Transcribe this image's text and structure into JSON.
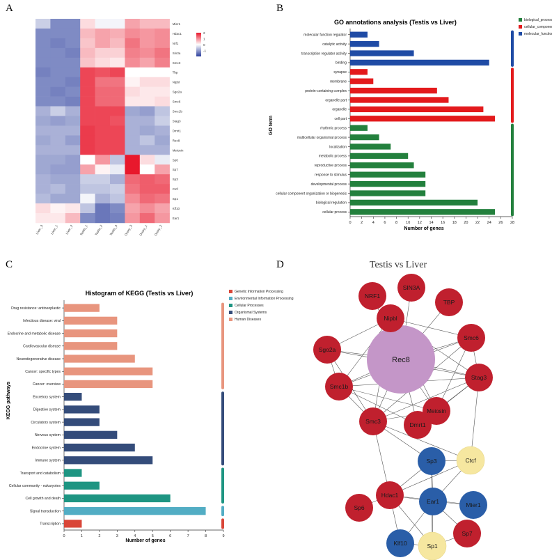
{
  "panel_labels": [
    "A",
    "B",
    "C",
    "D"
  ],
  "chart_data": [
    {
      "type": "heatmap",
      "panel": "A",
      "columns": [
        "Liver_3",
        "Liver_1",
        "Liver_2",
        "Testis_1",
        "Testis_2",
        "Testis_3",
        "Ovary_3",
        "Ovary_1",
        "Ovary_2"
      ],
      "rows": [
        "Mier1",
        "Hdac1",
        "Nrf1",
        "Sin3a",
        "Smc3",
        "Tbp",
        "Nipbl",
        "Sgo2a",
        "Smc6",
        "Smc1b",
        "Stag3",
        "Dmrt1",
        "Rec8",
        "Meiosin",
        "Sp6",
        "Sp7",
        "Sp3",
        "Ctcf",
        "Sp1",
        "Klf10",
        "Ear1"
      ],
      "values": [
        [
          -0.5,
          -1.2,
          -1.2,
          0.3,
          -0.1,
          -0.1,
          0.8,
          0.6,
          0.6
        ],
        [
          -1.2,
          -1.2,
          -1.2,
          0.6,
          0.8,
          0.7,
          1.0,
          0.9,
          1.0
        ],
        [
          -1.2,
          -1.3,
          -1.2,
          0.5,
          0.8,
          0.6,
          1.2,
          0.9,
          1.0
        ],
        [
          -1.2,
          -1.2,
          -1.3,
          0.6,
          0.4,
          0.4,
          1.1,
          1.0,
          1.2
        ],
        [
          -1.2,
          -1.2,
          -1.2,
          0.5,
          0.3,
          0.2,
          1.0,
          0.8,
          1.1
        ],
        [
          -1.3,
          -1.2,
          -1.2,
          1.6,
          1.5,
          1.6,
          0.0,
          0.0,
          0.0
        ],
        [
          -1.2,
          -1.2,
          -1.3,
          1.6,
          1.2,
          1.2,
          0.1,
          0.3,
          0.3
        ],
        [
          -1.2,
          -1.3,
          -1.2,
          1.6,
          1.3,
          1.3,
          0.3,
          0.2,
          0.2
        ],
        [
          -1.2,
          -1.2,
          -1.3,
          1.6,
          1.3,
          1.3,
          0.2,
          0.2,
          0.3
        ],
        [
          -0.8,
          -0.5,
          -0.8,
          1.6,
          1.6,
          1.6,
          -0.9,
          -1.0,
          -0.6
        ],
        [
          -0.9,
          -1.0,
          -0.9,
          1.6,
          1.6,
          1.5,
          -0.8,
          -0.8,
          -0.5
        ],
        [
          -0.8,
          -0.8,
          -0.8,
          1.7,
          1.6,
          1.6,
          -0.8,
          -0.9,
          -0.8
        ],
        [
          -0.9,
          -0.8,
          -1.0,
          1.7,
          1.6,
          1.6,
          -0.8,
          -0.6,
          -0.9
        ],
        [
          -0.8,
          -0.8,
          -0.8,
          1.7,
          1.6,
          1.6,
          -0.8,
          -0.8,
          -0.8
        ],
        [
          -0.9,
          -0.9,
          -1.0,
          0.0,
          0.9,
          -0.6,
          2.0,
          0.3,
          -0.2
        ],
        [
          -0.9,
          -1.0,
          -1.0,
          0.8,
          0.1,
          -0.2,
          2.0,
          0.0,
          0.8
        ],
        [
          -0.8,
          -0.9,
          -0.9,
          -0.5,
          -0.5,
          -0.8,
          1.3,
          1.4,
          1.3
        ],
        [
          -0.8,
          -0.7,
          -0.9,
          -0.6,
          -0.6,
          -0.5,
          1.2,
          1.4,
          1.4
        ],
        [
          -0.7,
          -0.9,
          -0.9,
          -0.1,
          -0.8,
          -0.6,
          1.0,
          1.3,
          1.2
        ],
        [
          0.3,
          0.1,
          0.2,
          -0.6,
          -1.4,
          -1.2,
          0.8,
          1.0,
          0.8
        ],
        [
          0.2,
          0.2,
          0.6,
          -1.2,
          -1.4,
          -1.3,
          0.9,
          1.3,
          0.9
        ]
      ],
      "scale_ticks": [
        "2",
        "1",
        "0",
        "-1"
      ],
      "scale_range": [
        -2,
        2
      ],
      "colors": {
        "low": "#2a3d9c",
        "mid": "#ffffff",
        "high": "#e8182c"
      }
    },
    {
      "type": "bar",
      "panel": "B",
      "orientation": "horizontal",
      "title": "GO annotations analysis (Testis vs Liver)",
      "xlabel": "Number of genes",
      "ylabel": "GO term",
      "xlim": [
        0,
        28
      ],
      "xticks": [
        0,
        2,
        4,
        6,
        8,
        10,
        12,
        14,
        16,
        18,
        20,
        22,
        24,
        26,
        28
      ],
      "categories": [
        "molecular function regulator",
        "catalytic activity",
        "transcription regulator activity",
        "binding",
        "synapse",
        "membrane",
        "protein-containing complex",
        "organelle part",
        "organelle",
        "cell part",
        "rhythmic process",
        "multicellular organismal process",
        "localization",
        "metabolic process",
        "reproductive process",
        "response to stimulus",
        "developmental process",
        "cellular component organization or biogenesis",
        "biological regulation",
        "cellular process"
      ],
      "values": [
        3,
        5,
        11,
        24,
        3,
        4,
        15,
        17,
        23,
        25,
        3,
        5,
        7,
        10,
        11,
        13,
        13,
        13,
        22,
        25
      ],
      "groups": [
        2,
        2,
        2,
        2,
        1,
        1,
        1,
        1,
        1,
        1,
        0,
        0,
        0,
        0,
        0,
        0,
        0,
        0,
        0,
        0
      ],
      "legend": [
        "biological_process",
        "cellular_component",
        "molecular_function"
      ],
      "colors": [
        "#23803d",
        "#e31a1c",
        "#1f4ba5"
      ]
    },
    {
      "type": "bar",
      "panel": "C",
      "orientation": "horizontal",
      "title": "Histogram of KEGG (Testis vs Liver)",
      "xlabel": "Number of genes",
      "ylabel": "KEGG pathways",
      "xlim": [
        0,
        9
      ],
      "xticks": [
        0,
        1,
        2,
        3,
        4,
        5,
        6,
        7,
        8,
        9
      ],
      "categories": [
        "Drug resistance: antineoplastic",
        "Infectious disease: viral",
        "Endocrine and metabolic disease",
        "Cardiovascular disease",
        "Neurodegenerative disease",
        "Cancer: specific types",
        "Cancer: overview",
        "Excretory system",
        "Digestive system",
        "Circulatory system",
        "Nervous system",
        "Endocrine system",
        "Immune system",
        "Transport and catabolism",
        "Cellular community - eukaryotes",
        "Cell growth and death",
        "Signal transduction",
        "Transcription"
      ],
      "values": [
        2,
        3,
        3,
        3,
        4,
        5,
        5,
        1,
        2,
        2,
        3,
        4,
        5,
        1,
        2,
        6,
        8,
        1
      ],
      "groups": [
        4,
        4,
        4,
        4,
        4,
        4,
        4,
        3,
        3,
        3,
        3,
        3,
        3,
        2,
        2,
        2,
        1,
        0
      ],
      "legend": [
        "Genetic Information Processing",
        "Environmental Information Processing",
        "Cellular Processes",
        "Organismal Systems",
        "Human Diseases"
      ],
      "colors": [
        "#d94638",
        "#52adc4",
        "#1e9582",
        "#344c7a",
        "#e8957e"
      ]
    }
  ],
  "network": {
    "title": "Testis vs Liver",
    "colors": {
      "red": "#c0202e",
      "purple": "#c496c8",
      "blue": "#2a5ea8",
      "yellow": "#f6e7a0"
    },
    "nodes": [
      {
        "id": "Rec8",
        "color": "purple",
        "size": "large"
      },
      {
        "id": "NRF1",
        "color": "red"
      },
      {
        "id": "SIN3A",
        "color": "red"
      },
      {
        "id": "TBP",
        "color": "red"
      },
      {
        "id": "Nipbl",
        "color": "red"
      },
      {
        "id": "Smc6",
        "color": "red"
      },
      {
        "id": "Sgo2a",
        "color": "red"
      },
      {
        "id": "Stag3",
        "color": "red"
      },
      {
        "id": "Smc1b",
        "color": "red"
      },
      {
        "id": "Meiosin",
        "color": "red"
      },
      {
        "id": "Smc3",
        "color": "red"
      },
      {
        "id": "Dmrt1",
        "color": "red"
      },
      {
        "id": "Sp3",
        "color": "blue"
      },
      {
        "id": "Ctcf",
        "color": "yellow"
      },
      {
        "id": "Mier1",
        "color": "blue"
      },
      {
        "id": "Sp6",
        "color": "red"
      },
      {
        "id": "Hdac1",
        "color": "red"
      },
      {
        "id": "Ear1",
        "color": "blue"
      },
      {
        "id": "Klf10",
        "color": "blue"
      },
      {
        "id": "Sp7",
        "color": "red"
      },
      {
        "id": "Sp1",
        "color": "yellow"
      }
    ],
    "edges": [
      [
        "Rec8",
        "NRF1"
      ],
      [
        "Rec8",
        "SIN3A"
      ],
      [
        "Rec8",
        "TBP"
      ],
      [
        "Rec8",
        "Nipbl"
      ],
      [
        "Rec8",
        "Smc6"
      ],
      [
        "Rec8",
        "Sgo2a"
      ],
      [
        "Rec8",
        "Stag3"
      ],
      [
        "Rec8",
        "Smc1b"
      ],
      [
        "Rec8",
        "Meiosin"
      ],
      [
        "Rec8",
        "Smc3"
      ],
      [
        "Rec8",
        "Dmrt1"
      ],
      [
        "Nipbl",
        "Smc6"
      ],
      [
        "Nipbl",
        "Sgo2a"
      ],
      [
        "Nipbl",
        "Smc1b"
      ],
      [
        "Nipbl",
        "Smc3"
      ],
      [
        "Nipbl",
        "Stag3"
      ],
      [
        "Nipbl",
        "Meiosin"
      ],
      [
        "Sgo2a",
        "Smc1b"
      ],
      [
        "Sgo2a",
        "Smc3"
      ],
      [
        "Sgo2a",
        "Stag3"
      ],
      [
        "Smc6",
        "Stag3"
      ],
      [
        "Smc6",
        "Smc1b"
      ],
      [
        "Smc6",
        "Smc3"
      ],
      [
        "Smc6",
        "Meiosin"
      ],
      [
        "Smc1b",
        "Smc3"
      ],
      [
        "Smc1b",
        "Stag3"
      ],
      [
        "Smc1b",
        "Dmrt1"
      ],
      [
        "Smc1b",
        "Meiosin"
      ],
      [
        "Stag3",
        "Smc3"
      ],
      [
        "Stag3",
        "Meiosin"
      ],
      [
        "Stag3",
        "Dmrt1"
      ],
      [
        "Stag3",
        "Ctcf"
      ],
      [
        "Smc3",
        "Hdac1"
      ],
      [
        "Smc3",
        "Ctcf"
      ],
      [
        "Smc3",
        "Meiosin"
      ],
      [
        "Smc3",
        "Sp3"
      ],
      [
        "Sp3",
        "Ctcf"
      ],
      [
        "Sp3",
        "Hdac1"
      ],
      [
        "Sp3",
        "Ear1"
      ],
      [
        "Sp3",
        "Sp1"
      ],
      [
        "Ctcf",
        "Ear1"
      ],
      [
        "Ctcf",
        "Hdac1"
      ],
      [
        "Hdac1",
        "Ear1"
      ],
      [
        "Hdac1",
        "Mier1"
      ],
      [
        "Hdac1",
        "Sp1"
      ],
      [
        "Hdac1",
        "Klf10"
      ],
      [
        "Hdac1",
        "Sp6"
      ],
      [
        "Ear1",
        "Mier1"
      ],
      [
        "Ear1",
        "Sp1"
      ],
      [
        "Ear1",
        "Klf10"
      ],
      [
        "Ear1",
        "Sp7"
      ],
      [
        "Sp1",
        "Sp7"
      ],
      [
        "Sp1",
        "Klf10"
      ]
    ]
  }
}
